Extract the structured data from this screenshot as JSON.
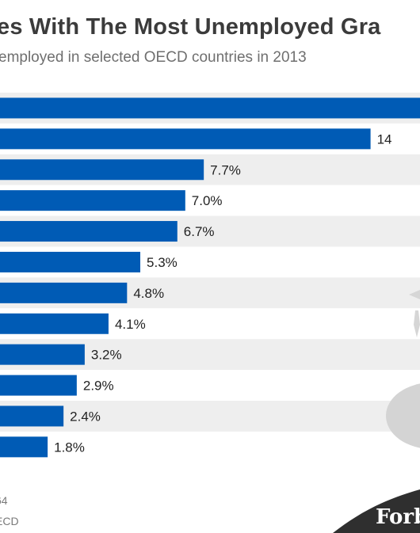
{
  "header": {
    "title": "es With The Most Unemployed Gra",
    "subtitle": "employed in selected OECD countries in 2013"
  },
  "footer": {
    "line1": "64",
    "line2": "ECD",
    "brand": "Forb"
  },
  "colors": {
    "bar": "#005bb5",
    "row_alt": "#eeeeee",
    "row": "#ffffff",
    "text": "#222222",
    "art": "#d0d0d0"
  },
  "chart_data": {
    "type": "bar",
    "orientation": "horizontal",
    "categories": [],
    "values": [
      null,
      14,
      7.7,
      7.0,
      6.7,
      5.3,
      4.8,
      4.1,
      3.2,
      2.9,
      2.4,
      1.8
    ],
    "labels": [
      "",
      "14",
      "7.7%",
      "7.0%",
      "6.7%",
      "5.3%",
      "4.8%",
      "4.1%",
      "3.2%",
      "2.9%",
      "2.4%",
      "1.8%"
    ],
    "xlim": [
      0,
      16
    ],
    "grid": false,
    "legend": "none"
  }
}
